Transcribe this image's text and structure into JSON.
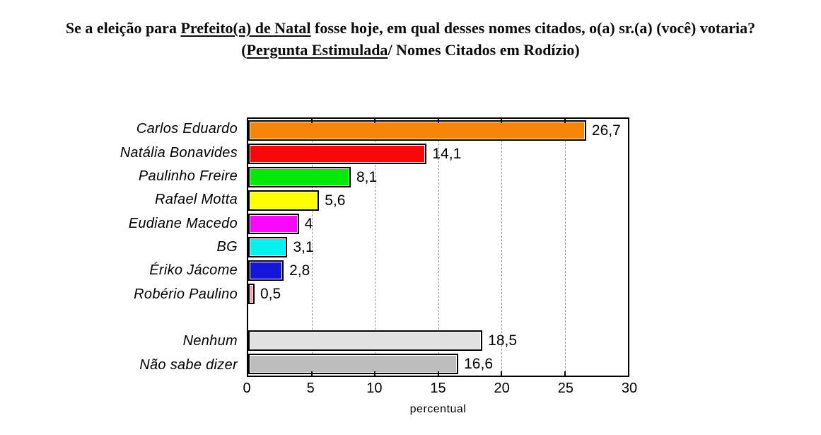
{
  "title": {
    "line1_pre": "Se a eleição para ",
    "line1_underlined": "Prefeito(a) de Natal",
    "line1_post": " fosse hoje, em qual desses nomes citados, o(a) sr.(a) (você) votaria?",
    "line2_pre": "(",
    "line2_underlined": "Pergunta Estimulada",
    "line2_post": "/ Nomes Citados em Rodízio)"
  },
  "chart_data": {
    "type": "bar",
    "orientation": "horizontal",
    "xlabel": "percentual",
    "xlim": [
      0,
      30
    ],
    "x_ticks": [
      0,
      5,
      10,
      15,
      20,
      25,
      30
    ],
    "gridline_values": [
      5,
      10,
      15,
      20,
      25
    ],
    "grid": "vertical-dashed-gray",
    "legend": "none",
    "decimal_separator": ",",
    "groups": [
      {
        "name": "candidatos",
        "bars": [
          {
            "label": "Carlos Eduardo",
            "value": 26.7,
            "value_label": "26,7",
            "color": "#F98508"
          },
          {
            "label": "Natália Bonavides",
            "value": 14.1,
            "value_label": "14,1",
            "color": "#FA0808"
          },
          {
            "label": "Paulinho Freire",
            "value": 8.1,
            "value_label": "8,1",
            "color": "#06E806"
          },
          {
            "label": "Rafael Motta",
            "value": 5.6,
            "value_label": "5,6",
            "color": "#FDFD04"
          },
          {
            "label": "Eudiane Macedo",
            "value": 4,
            "value_label": "4",
            "color": "#F908F9"
          },
          {
            "label": "BG",
            "value": 3.1,
            "value_label": "3,1",
            "color": "#08EFEF"
          },
          {
            "label": "Ériko Jácome",
            "value": 2.8,
            "value_label": "2,8",
            "color": "#1616D8"
          },
          {
            "label": "Robério Paulino",
            "value": 0.5,
            "value_label": "0,5",
            "color": "#F89C9C"
          }
        ]
      },
      {
        "name": "outros",
        "bars": [
          {
            "label": "Nenhum",
            "value": 18.5,
            "value_label": "18,5",
            "color": "#E1E1E1"
          },
          {
            "label": "Não sabe dizer",
            "value": 16.6,
            "value_label": "16,6",
            "color": "#BDBDBD"
          }
        ]
      }
    ]
  }
}
